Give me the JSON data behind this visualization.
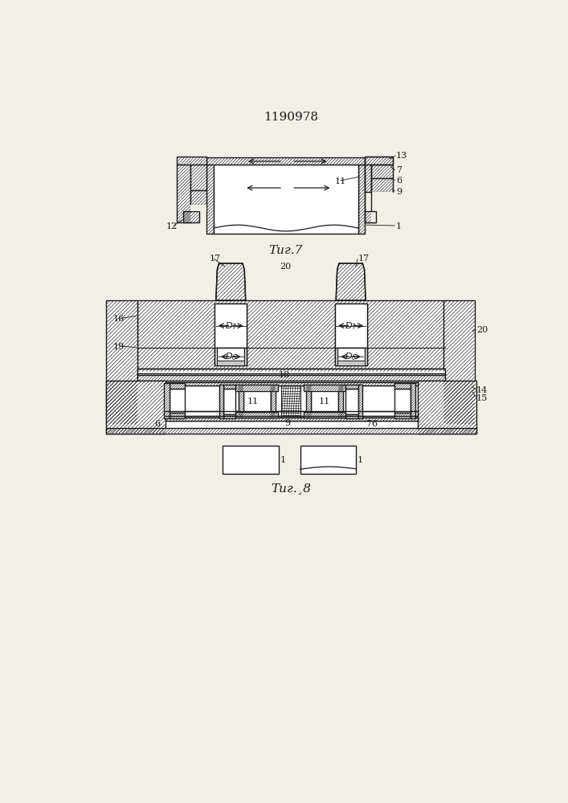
{
  "title": "1190978",
  "fig7_label": "Τиг.7",
  "fig8_label": "Τиг.¸8",
  "bg_color": "#f2efe8",
  "line_color": "#1a1a1a"
}
